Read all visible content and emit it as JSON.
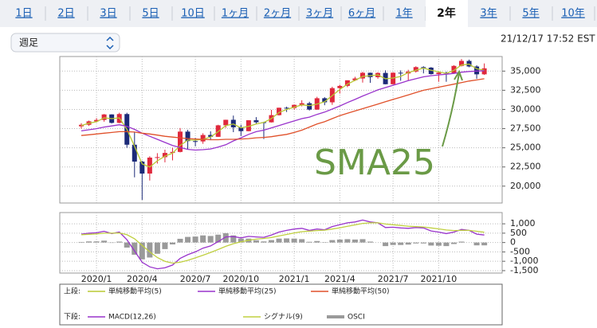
{
  "tabs": [
    "1日",
    "2日",
    "3日",
    "5日",
    "10日",
    "1ヶ月",
    "2ヶ月",
    "3ヶ月",
    "6ヶ月",
    "1年",
    "2年",
    "3年",
    "5年",
    "10年"
  ],
  "selected_tab": "2年",
  "dropdown": "週足",
  "timestamp": "21/12/17 17:52 EST",
  "chart_data": [
    {
      "type": "candlestick",
      "legend_title": "上段:",
      "annotation": "SMA25",
      "up_color": "#e0283c",
      "down_color": "#1c2a78",
      "open": [
        27800,
        28000,
        28450,
        28630,
        29350,
        28250,
        29400,
        25400,
        23200,
        21640,
        23720,
        23780,
        24330,
        24460,
        27110,
        25870,
        25830,
        26670,
        26430,
        27930,
        28650,
        27670,
        27170,
        28590,
        28330,
        28320,
        29260,
        30220,
        30180,
        30600,
        30810,
        29980,
        31460,
        30930,
        32780,
        33070,
        33800,
        34040,
        34780,
        34210,
        34760,
        33290,
        34790,
        34690,
        34940,
        35520,
        35450,
        34610,
        34800,
        34750,
        35680,
        36330,
        35600,
        34580
      ],
      "high": [
        28200,
        28550,
        28870,
        29400,
        29370,
        29570,
        29570,
        27100,
        23300,
        23900,
        24300,
        24760,
        25000,
        27580,
        27340,
        26290,
        26900,
        27150,
        28000,
        28660,
        29200,
        28000,
        28600,
        29000,
        28400,
        29950,
        30240,
        30360,
        30640,
        31200,
        31000,
        31650,
        31600,
        32960,
        33230,
        33800,
        34260,
        34900,
        34800,
        34850,
        35100,
        34850,
        35090,
        35170,
        35630,
        35630,
        35530,
        34960,
        34930,
        35770,
        36570,
        36500,
        35760,
        36000
      ],
      "low": [
        27500,
        27850,
        28300,
        28400,
        28170,
        28200,
        25000,
        21150,
        18210,
        20730,
        22940,
        23100,
        23360,
        24400,
        24840,
        25190,
        25520,
        25990,
        26420,
        27610,
        27040,
        26540,
        27150,
        28100,
        26140,
        28300,
        29200,
        29670,
        29950,
        30400,
        29860,
        29950,
        30550,
        30600,
        32070,
        32900,
        33700,
        33500,
        33470,
        34000,
        33270,
        33250,
        33740,
        33750,
        34800,
        34700,
        34550,
        33600,
        33610,
        34650,
        35600,
        35500,
        34000,
        34500
      ],
      "close": [
        28000,
        28450,
        28630,
        29350,
        28250,
        29400,
        25400,
        23200,
        21640,
        23720,
        23780,
        24330,
        24460,
        27110,
        25870,
        25830,
        26670,
        26430,
        27930,
        28650,
        27670,
        27170,
        28590,
        28330,
        28320,
        29260,
        30220,
        30180,
        30600,
        30810,
        29980,
        31460,
        30930,
        32780,
        33070,
        33800,
        34040,
        34780,
        34210,
        34760,
        33290,
        34790,
        34690,
        34940,
        35520,
        35450,
        34610,
        34800,
        34750,
        35680,
        36330,
        35600,
        34580,
        35360
      ],
      "series": [
        {
          "name": "単純移動平均(5)",
          "color": "#b8c832",
          "values": [
            27900,
            28200,
            28400,
            28900,
            28800,
            28900,
            27400,
            25200,
            22900,
            22500,
            23300,
            23900,
            24300,
            25300,
            26000,
            26000,
            26100,
            26400,
            27100,
            27900,
            28100,
            27600,
            27800,
            28100,
            28300,
            28800,
            29600,
            30000,
            30300,
            30600,
            30500,
            30700,
            31000,
            31800,
            32600,
            33300,
            33800,
            34300,
            34400,
            34500,
            34000,
            34100,
            34300,
            34800,
            35100,
            35400,
            35100,
            34900,
            34700,
            35100,
            35800,
            35900,
            35300,
            35100
          ]
        },
        {
          "name": "単純移動平均(25)",
          "color": "#9933cc",
          "values": [
            27200,
            27350,
            27500,
            27700,
            27850,
            28000,
            27800,
            27400,
            26900,
            26500,
            26100,
            25700,
            25300,
            25050,
            24800,
            24700,
            24750,
            24850,
            25100,
            25400,
            25900,
            26300,
            26750,
            27100,
            27300,
            27600,
            27900,
            28200,
            28500,
            28800,
            29000,
            29350,
            29650,
            30050,
            30450,
            30900,
            31300,
            31750,
            32150,
            32550,
            32850,
            33150,
            33450,
            33750,
            34000,
            34250,
            34400,
            34500,
            34600,
            34700,
            34850,
            34950,
            35000,
            35050
          ]
        },
        {
          "name": "単純移動平均(50)",
          "color": "#e0502a",
          "values": [
            26600,
            26700,
            26800,
            26900,
            27000,
            27100,
            27100,
            27050,
            26900,
            26800,
            26650,
            26500,
            26400,
            26300,
            26200,
            26150,
            26100,
            26050,
            26050,
            26100,
            26100,
            26150,
            26200,
            26300,
            26350,
            26450,
            26600,
            26750,
            27000,
            27300,
            27700,
            28100,
            28400,
            28800,
            29200,
            29500,
            29800,
            30100,
            30400,
            30700,
            31000,
            31300,
            31600,
            31900,
            32200,
            32500,
            32700,
            32900,
            33100,
            33300,
            33500,
            33700,
            33850,
            34000
          ]
        }
      ],
      "ylim": [
        17800,
        36900
      ],
      "yticks": [
        {
          "value": 20000,
          "label": "20,000"
        },
        {
          "value": 22500,
          "label": "22,500"
        },
        {
          "value": 25000,
          "label": "25,000"
        },
        {
          "value": 27500,
          "label": "27,500"
        },
        {
          "value": 30000,
          "label": "30,000"
        },
        {
          "value": 32500,
          "label": "32,500"
        },
        {
          "value": 35000,
          "label": "35,000"
        }
      ],
      "grid": true
    },
    {
      "type": "macd",
      "legend_title": "下段:",
      "categories": [
        null,
        null,
        "2020/1",
        null,
        null,
        null,
        null,
        null,
        "2020/4",
        null,
        null,
        null,
        null,
        null,
        null,
        "2020/7",
        null,
        null,
        null,
        null,
        null,
        "2020/10",
        null,
        null,
        null,
        null,
        null,
        null,
        "2021/1",
        null,
        null,
        null,
        null,
        null,
        "2021/4",
        null,
        null,
        null,
        null,
        null,
        null,
        "2021/7",
        null,
        null,
        null,
        null,
        null,
        "2021/10",
        null,
        null,
        null,
        null,
        null,
        null
      ],
      "series": [
        {
          "name": "MACD(12,26)",
          "kind": "line",
          "color": "#9933cc",
          "values": [
            450,
            500,
            520,
            600,
            480,
            560,
            150,
            -450,
            -1050,
            -1300,
            -1400,
            -1350,
            -1200,
            -850,
            -650,
            -500,
            -300,
            -180,
            50,
            300,
            320,
            250,
            330,
            300,
            280,
            400,
            560,
            650,
            720,
            760,
            650,
            720,
            680,
            850,
            950,
            1050,
            1100,
            1200,
            1100,
            1050,
            800,
            820,
            780,
            760,
            800,
            780,
            620,
            560,
            480,
            560,
            700,
            650,
            450,
            400
          ]
        },
        {
          "name": "シグナル(9)",
          "kind": "line",
          "color": "#c0d040",
          "values": [
            420,
            440,
            460,
            500,
            500,
            510,
            420,
            200,
            -150,
            -500,
            -800,
            -1000,
            -1100,
            -1050,
            -950,
            -820,
            -680,
            -530,
            -370,
            -200,
            -60,
            40,
            120,
            180,
            220,
            270,
            350,
            430,
            510,
            580,
            610,
            640,
            660,
            720,
            790,
            870,
            940,
            1020,
            1050,
            1050,
            990,
            950,
            910,
            870,
            850,
            830,
            780,
            730,
            670,
            640,
            650,
            650,
            600,
            550
          ]
        },
        {
          "name": "OSCI",
          "kind": "bar",
          "color": "#9a9a9a",
          "values": [
            30,
            60,
            60,
            100,
            -20,
            50,
            -270,
            -650,
            -900,
            -800,
            -600,
            -350,
            -100,
            200,
            300,
            320,
            380,
            350,
            420,
            500,
            380,
            210,
            210,
            120,
            60,
            130,
            210,
            220,
            210,
            180,
            40,
            80,
            20,
            130,
            160,
            180,
            160,
            180,
            50,
            0,
            -190,
            -130,
            -130,
            -110,
            -50,
            -50,
            -160,
            -170,
            -190,
            -80,
            50,
            0,
            -150,
            -150
          ]
        }
      ],
      "ylim": [
        -1630,
        1600
      ],
      "yticks": [
        {
          "value": -1500,
          "label": "-1,500"
        },
        {
          "value": -1000,
          "label": "-1,000"
        },
        -500,
        0,
        500,
        {
          "value": 1000,
          "label": "1,000"
        }
      ],
      "grid": true
    }
  ]
}
